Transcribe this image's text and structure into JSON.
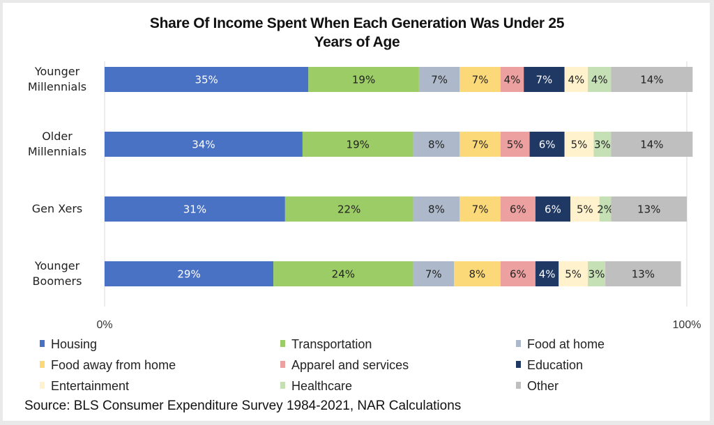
{
  "chart_data": {
    "type": "bar",
    "orientation": "horizontal",
    "stacked": true,
    "title": "Share Of Income Spent When Each Generation Was Under 25 Years of Age",
    "title_lines": [
      "Share Of Income Spent When Each Generation Was Under 25",
      "Years of Age"
    ],
    "xlabel": "",
    "ylabel": "",
    "xlim": [
      0,
      100
    ],
    "x_ticks": [
      "0%",
      "100%"
    ],
    "grid": false,
    "legend_position": "bottom",
    "categories": [
      [
        "Younger",
        "Millennials"
      ],
      [
        "Older",
        "Millennials"
      ],
      [
        "Gen Xers"
      ],
      [
        "Younger",
        "Boomers"
      ]
    ],
    "category_names": [
      "Younger Millennials",
      "Older Millennials",
      "Gen Xers",
      "Younger Boomers"
    ],
    "series": [
      {
        "name": "Housing",
        "color": "#4a72c4",
        "label_color": "#ffffff",
        "values": [
          35,
          34,
          31,
          29
        ]
      },
      {
        "name": "Transportation",
        "color": "#9ccc65",
        "label_color": "#222222",
        "values": [
          19,
          19,
          22,
          24
        ]
      },
      {
        "name": "Food at home",
        "color": "#adb9ca",
        "label_color": "#222222",
        "values": [
          7,
          8,
          8,
          7
        ]
      },
      {
        "name": "Food away from home",
        "color": "#fbd978",
        "label_color": "#222222",
        "values": [
          7,
          7,
          7,
          8
        ]
      },
      {
        "name": "Apparel and services",
        "color": "#eca0a0",
        "label_color": "#222222",
        "values": [
          4,
          5,
          6,
          6
        ]
      },
      {
        "name": "Education",
        "color": "#1f3864",
        "label_color": "#ffffff",
        "values": [
          7,
          6,
          6,
          4
        ]
      },
      {
        "name": "Entertainment",
        "color": "#fff2cc",
        "label_color": "#222222",
        "values": [
          4,
          5,
          5,
          5
        ]
      },
      {
        "name": "Healthcare",
        "color": "#c5e0b4",
        "label_color": "#222222",
        "values": [
          4,
          3,
          2,
          3
        ]
      },
      {
        "name": "Other",
        "color": "#bfbfbf",
        "label_color": "#222222",
        "values": [
          14,
          14,
          13,
          13
        ]
      }
    ],
    "source": "Source: BLS Consumer Expenditure Survey 1984-2021, NAR Calculations"
  }
}
